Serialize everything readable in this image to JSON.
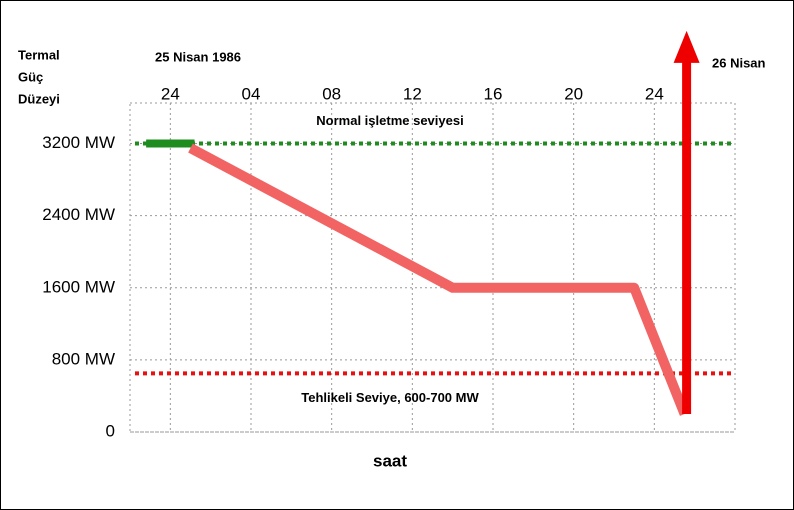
{
  "chart_data": {
    "type": "line",
    "subtitle": "25 Nisan 1986",
    "ylabel_lines": [
      "Termal",
      "Güç",
      "Düzeyi"
    ],
    "xlabel": "saat",
    "annotation": "26 Nisan",
    "xlim": [
      -2,
      28
    ],
    "xticks": [
      {
        "value": 0,
        "label": "24"
      },
      {
        "value": 4,
        "label": "04"
      },
      {
        "value": 8,
        "label": "08"
      },
      12,
      16,
      20,
      {
        "value": 24,
        "label": "24"
      }
    ],
    "ylim": [
      0,
      3650
    ],
    "yticks": [
      {
        "value": 3200,
        "label": "3200 MW"
      },
      {
        "value": 2400,
        "label": "2400 MW"
      },
      {
        "value": 1600,
        "label": "1600 MW"
      },
      {
        "value": 800,
        "label": "800 MW"
      },
      0
    ],
    "grid": true,
    "reference_lines": [
      {
        "label": "Normal işletme seviyesi",
        "value": 3200,
        "color": "#1e8c1e"
      },
      {
        "label": "Tehlikeli Seviye, 600-700 MW",
        "value": 650,
        "color": "#e81010"
      }
    ],
    "series": [
      {
        "color": "#1e8c1e",
        "x": [
          -1.2,
          1.2
        ],
        "values": [
          3200,
          3200
        ]
      },
      {
        "color": "#f26464",
        "x": [
          1,
          14,
          23,
          25.5
        ],
        "values": [
          3150,
          1600,
          1600,
          200
        ]
      },
      {
        "color": "#ee0000",
        "x": [
          25.6,
          25.6
        ],
        "values": [
          200,
          4450
        ],
        "arrow": true
      }
    ]
  }
}
